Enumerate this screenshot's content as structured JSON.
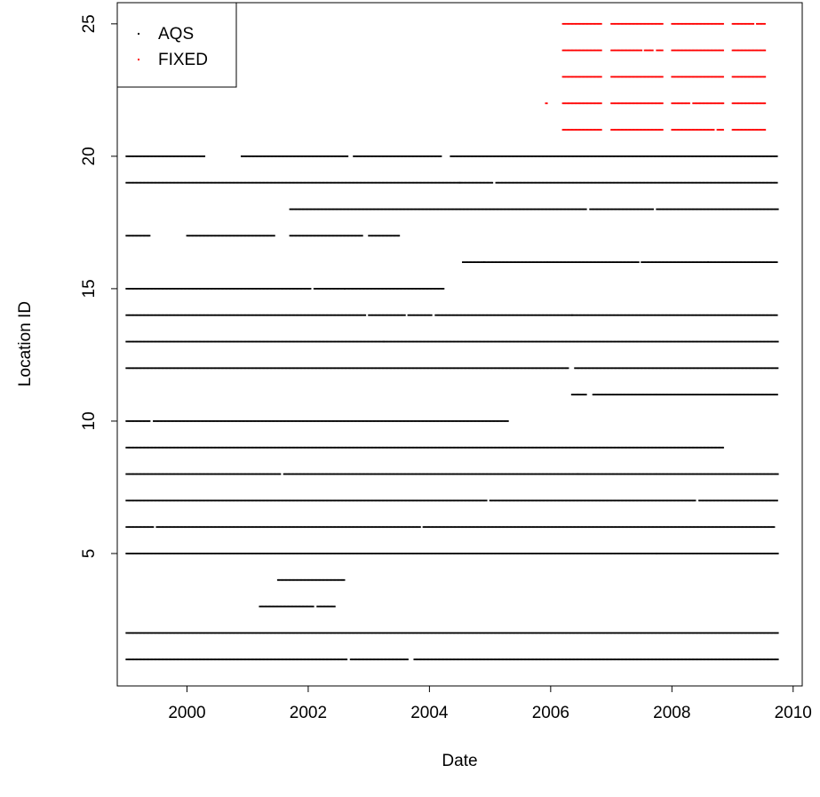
{
  "chart_data": {
    "type": "scatter",
    "title": "",
    "xlabel": "Date",
    "ylabel": "Location ID",
    "xlim": [
      1998.85,
      2010.15
    ],
    "ylim": [
      0.0,
      25.8
    ],
    "x_ticks": [
      "2000",
      "2002",
      "2004",
      "2006",
      "2008",
      "2010"
    ],
    "y_ticks": [
      "5",
      "10",
      "15",
      "20",
      "25"
    ],
    "legend_position": "top-left",
    "series": [
      {
        "name": "AQS",
        "color": "#000000",
        "marker": "dot",
        "segments": [
          {
            "id": 20,
            "ranges": [
              [
                1999.0,
                2000.3
              ],
              [
                2000.9,
                2002.65
              ],
              [
                2002.75,
                2004.2
              ],
              [
                2004.35,
                2009.75
              ]
            ]
          },
          {
            "id": 19,
            "ranges": [
              [
                1999.0,
                2004.5
              ],
              [
                2004.5,
                2005.05
              ],
              [
                2005.1,
                2009.75
              ]
            ]
          },
          {
            "id": 18,
            "ranges": [
              [
                2001.7,
                2006.6
              ],
              [
                2006.65,
                2007.7
              ],
              [
                2007.75,
                2009.75
              ]
            ]
          },
          {
            "id": 17,
            "ranges": [
              [
                1999.0,
                1999.4
              ],
              [
                2000.0,
                2001.45
              ],
              [
                2001.7,
                2002.9
              ],
              [
                2003.0,
                2003.5
              ]
            ]
          },
          {
            "id": 16,
            "ranges": [
              [
                2004.55,
                2004.9
              ],
              [
                2004.9,
                2005.95
              ],
              [
                2005.95,
                2007.45
              ],
              [
                2007.5,
                2008.6
              ],
              [
                2008.6,
                2009.75
              ]
            ]
          },
          {
            "id": 15,
            "ranges": [
              [
                1999.0,
                2002.05
              ],
              [
                2002.1,
                2002.6
              ],
              [
                2002.6,
                2004.25
              ]
            ]
          },
          {
            "id": 14,
            "ranges": [
              [
                1999.0,
                2002.95
              ],
              [
                2003.0,
                2003.6
              ],
              [
                2003.65,
                2004.05
              ],
              [
                2004.1,
                2006.35
              ],
              [
                2006.35,
                2009.75
              ]
            ]
          },
          {
            "id": 13,
            "ranges": [
              [
                1999.0,
                2003.25
              ],
              [
                2003.25,
                2009.75
              ]
            ]
          },
          {
            "id": 12,
            "ranges": [
              [
                1999.0,
                2006.3
              ],
              [
                2006.4,
                2009.75
              ]
            ]
          },
          {
            "id": 11,
            "ranges": [
              [
                2006.35,
                2006.45
              ],
              [
                2006.45,
                2006.6
              ],
              [
                2006.7,
                2007.75
              ],
              [
                2007.75,
                2008.4
              ],
              [
                2008.4,
                2008.95
              ],
              [
                2008.95,
                2009.75
              ]
            ]
          },
          {
            "id": 10,
            "ranges": [
              [
                1999.0,
                1999.4
              ],
              [
                1999.45,
                2005.3
              ]
            ]
          },
          {
            "id": 9,
            "ranges": [
              [
                1999.0,
                2008.85
              ]
            ]
          },
          {
            "id": 8,
            "ranges": [
              [
                1999.0,
                2001.55
              ],
              [
                2001.6,
                2006.45
              ],
              [
                2006.45,
                2007.75
              ],
              [
                2007.75,
                2009.75
              ]
            ]
          },
          {
            "id": 7,
            "ranges": [
              [
                1999.0,
                2004.95
              ],
              [
                2005.0,
                2008.4
              ],
              [
                2008.45,
                2009.75
              ]
            ]
          },
          {
            "id": 6,
            "ranges": [
              [
                1999.0,
                1999.45
              ],
              [
                1999.5,
                2003.85
              ],
              [
                2003.9,
                2009.7
              ]
            ]
          },
          {
            "id": 5,
            "ranges": [
              [
                1999.0,
                2007.75
              ],
              [
                2007.75,
                2009.75
              ]
            ]
          },
          {
            "id": 4,
            "ranges": [
              [
                2001.5,
                2002.6
              ]
            ]
          },
          {
            "id": 3,
            "ranges": [
              [
                2001.2,
                2002.1
              ],
              [
                2002.15,
                2002.45
              ]
            ]
          },
          {
            "id": 2,
            "ranges": [
              [
                1999.0,
                2009.75
              ]
            ]
          },
          {
            "id": 1,
            "ranges": [
              [
                1999.0,
                2002.65
              ],
              [
                2002.7,
                2003.65
              ],
              [
                2003.75,
                2009.75
              ]
            ]
          }
        ]
      },
      {
        "name": "FIXED",
        "color": "#ff0000",
        "marker": "dot",
        "segments": [
          {
            "id": 25,
            "ranges": [
              [
                2006.2,
                2006.85
              ],
              [
                2007.0,
                2007.85
              ],
              [
                2008.0,
                2008.85
              ],
              [
                2009.0,
                2009.35
              ],
              [
                2009.4,
                2009.55
              ]
            ]
          },
          {
            "id": 24,
            "ranges": [
              [
                2006.2,
                2006.85
              ],
              [
                2007.0,
                2007.5
              ],
              [
                2007.55,
                2007.7
              ],
              [
                2007.75,
                2007.85
              ],
              [
                2008.0,
                2008.85
              ],
              [
                2009.0,
                2009.55
              ]
            ]
          },
          {
            "id": 23,
            "ranges": [
              [
                2006.2,
                2006.85
              ],
              [
                2007.0,
                2007.85
              ],
              [
                2008.0,
                2008.85
              ],
              [
                2009.0,
                2009.55
              ]
            ]
          },
          {
            "id": 22,
            "ranges": [
              [
                2005.92,
                2005.94
              ],
              [
                2006.2,
                2006.85
              ],
              [
                2007.0,
                2007.85
              ],
              [
                2008.0,
                2008.3
              ],
              [
                2008.35,
                2008.85
              ],
              [
                2009.0,
                2009.55
              ]
            ]
          },
          {
            "id": 21,
            "ranges": [
              [
                2006.2,
                2006.85
              ],
              [
                2007.0,
                2007.85
              ],
              [
                2008.0,
                2008.7
              ],
              [
                2008.75,
                2008.85
              ],
              [
                2009.0,
                2009.55
              ]
            ]
          }
        ]
      }
    ]
  }
}
